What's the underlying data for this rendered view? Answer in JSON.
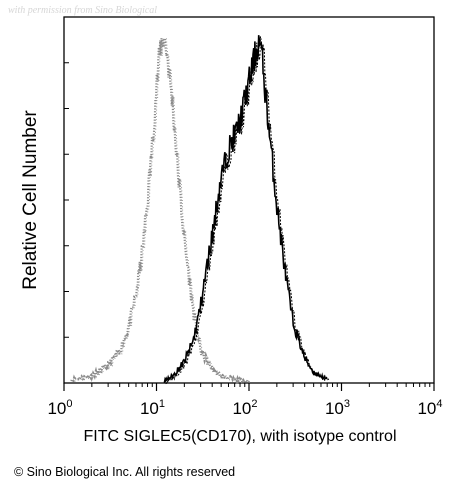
{
  "watermark": "with permission from Sino Biological",
  "copyright": "© Sino Biological Inc. All rights reserved",
  "chart_data": {
    "type": "area",
    "title": "",
    "xlabel": "FITC SIGLEC5(CD170), with isotype control",
    "ylabel": "Relative Cell Number",
    "x_scale": "log",
    "xlim": [
      1,
      10000
    ],
    "ylim": [
      0,
      1
    ],
    "grid": false,
    "legend": "none",
    "x_ticks": [
      {
        "base": "10",
        "exp": "0",
        "value": 1
      },
      {
        "base": "10",
        "exp": "1",
        "value": 10
      },
      {
        "base": "10",
        "exp": "2",
        "value": 100
      },
      {
        "base": "10",
        "exp": "3",
        "value": 1000
      },
      {
        "base": "10",
        "exp": "4",
        "value": 10000
      }
    ],
    "series": [
      {
        "role": "isotype-control",
        "style": "dotted",
        "color": "#8a8a8a",
        "x": [
          1.2,
          2,
          3,
          4,
          5,
          6,
          7,
          8,
          9,
          10,
          11,
          12,
          13,
          15,
          17,
          20,
          25,
          30,
          40,
          50,
          70,
          100
        ],
        "y": [
          0.01,
          0.02,
          0.05,
          0.09,
          0.16,
          0.25,
          0.37,
          0.52,
          0.68,
          0.84,
          0.95,
          0.98,
          0.93,
          0.78,
          0.6,
          0.4,
          0.2,
          0.09,
          0.04,
          0.02,
          0.01,
          0.005
        ]
      },
      {
        "role": "SIGLEC5 stained",
        "style": "solid",
        "color": "#000000",
        "x": [
          12,
          15,
          20,
          25,
          30,
          40,
          50,
          60,
          70,
          80,
          90,
          100,
          110,
          120,
          130,
          140,
          150,
          170,
          200,
          250,
          300,
          400,
          500,
          700
        ],
        "y": [
          0.005,
          0.02,
          0.06,
          0.12,
          0.22,
          0.42,
          0.58,
          0.66,
          0.7,
          0.74,
          0.8,
          0.85,
          0.9,
          0.94,
          0.97,
          0.91,
          0.82,
          0.68,
          0.5,
          0.3,
          0.17,
          0.07,
          0.03,
          0.01
        ]
      }
    ]
  }
}
